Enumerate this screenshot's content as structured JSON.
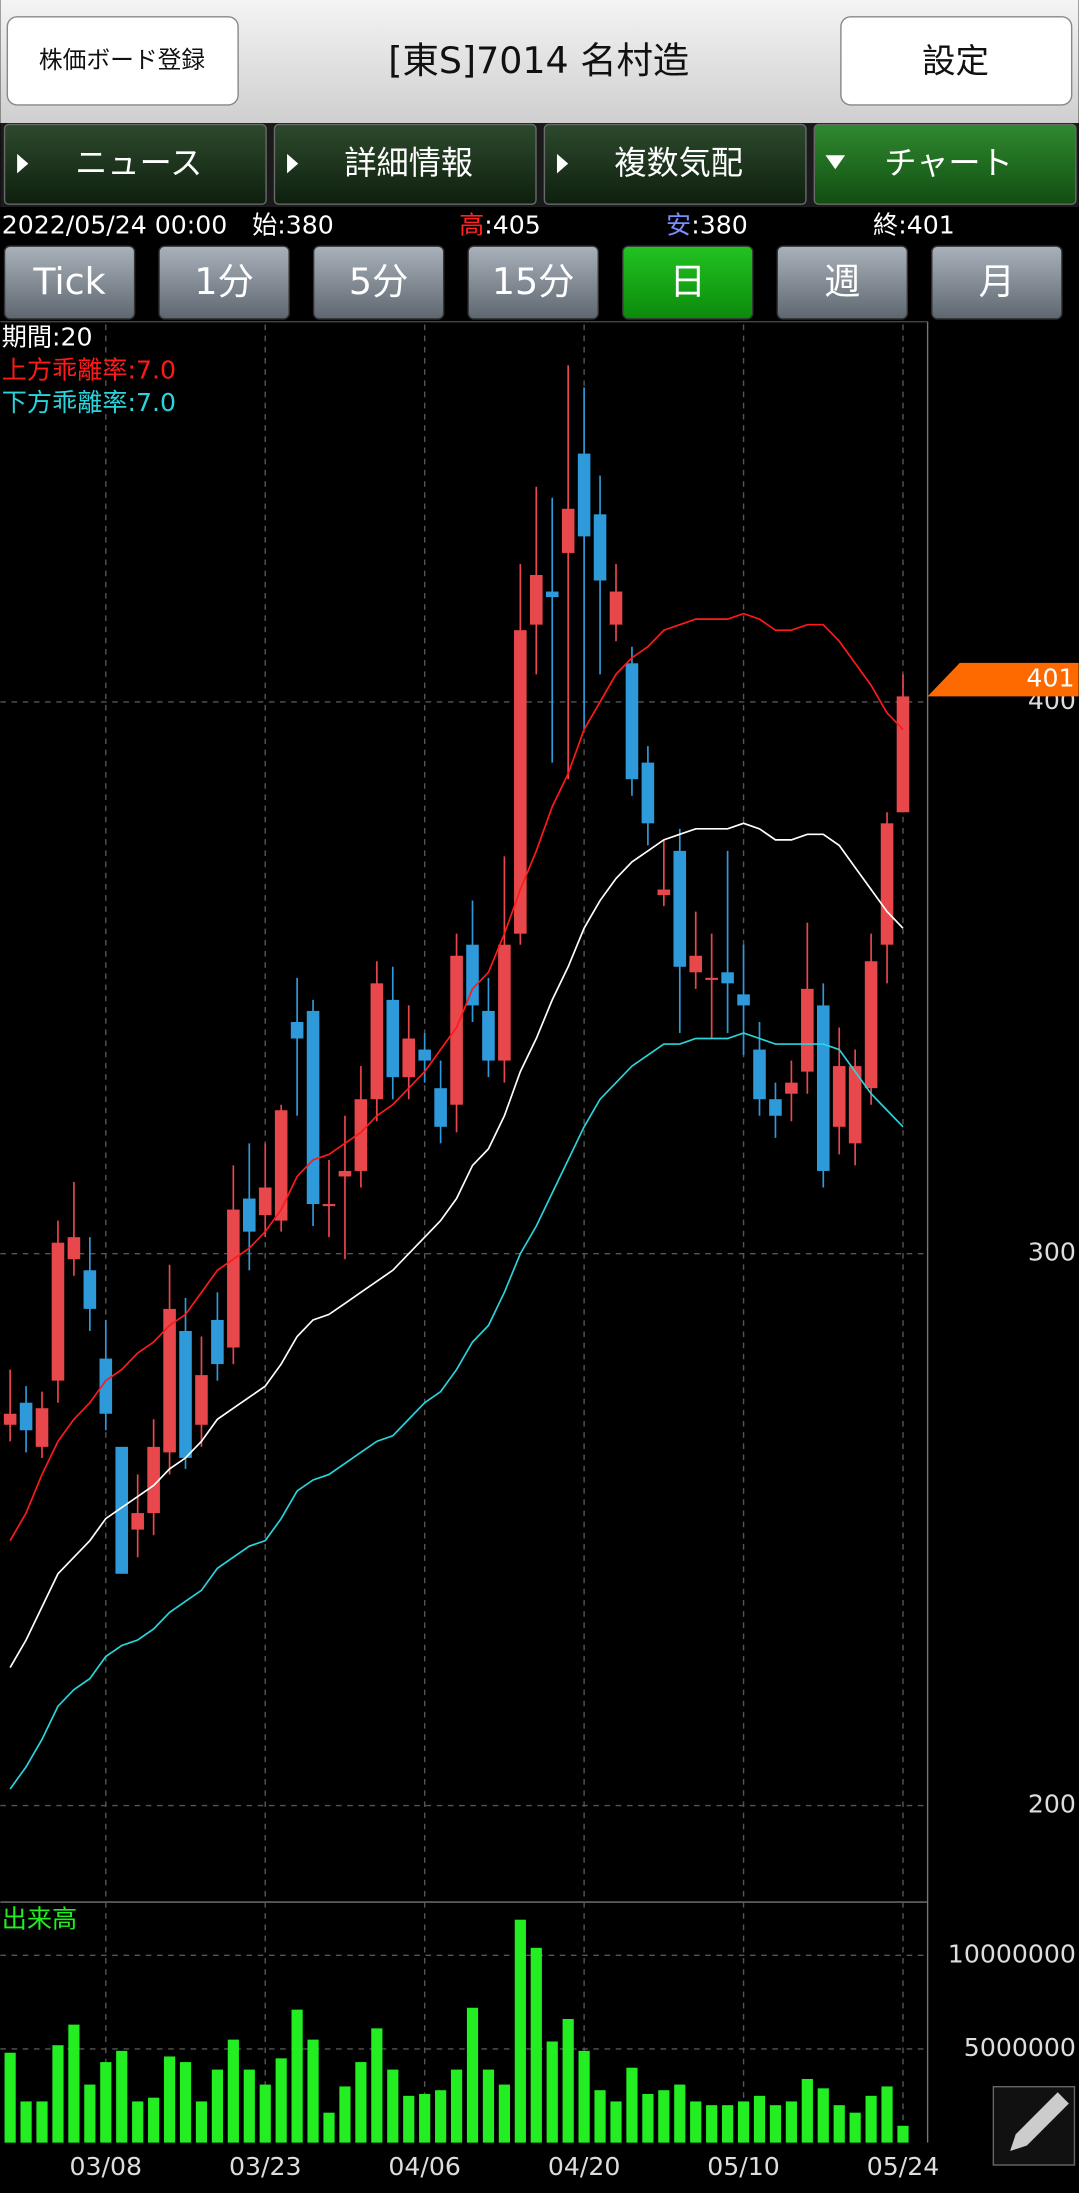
{
  "header": {
    "register_button": "株価ボード登録",
    "title": "[東S]7014 名村造",
    "settings_button": "設定",
    "tabs": [
      "ニュース",
      "詳細情報",
      "複数気配",
      "チャート"
    ],
    "active_tab": "チャート",
    "info": {
      "date": "2022/05/24 00:00",
      "open": {
        "label": "始",
        "value": ":380"
      },
      "high": {
        "label": "高",
        "value": ":405"
      },
      "low": {
        "label": "安",
        "value": ":380"
      },
      "close": {
        "label": "終",
        "value": ":401"
      }
    },
    "periods": [
      "Tick",
      "1分",
      "5分",
      "15分",
      "日",
      "週",
      "月"
    ],
    "active_period": "日"
  },
  "chart_data": [
    {
      "type": "candlestick",
      "up_color": "#e8474b",
      "down_color": "#2e9ad9",
      "categories": [
        null,
        null,
        null,
        null,
        null,
        null,
        "03/08",
        null,
        null,
        null,
        null,
        null,
        null,
        null,
        null,
        null,
        "03/23",
        null,
        null,
        null,
        null,
        null,
        null,
        null,
        null,
        null,
        "04/06",
        null,
        null,
        null,
        null,
        null,
        null,
        null,
        null,
        null,
        "04/20",
        null,
        null,
        null,
        null,
        null,
        null,
        null,
        null,
        null,
        "05/10",
        null,
        null,
        null,
        null,
        null,
        null,
        null,
        null,
        null,
        "05/24"
      ],
      "open": [
        269,
        273,
        265,
        277,
        299,
        297,
        281,
        265,
        250,
        253,
        264,
        286,
        269,
        288,
        283,
        310,
        307,
        306,
        342,
        344,
        309,
        314,
        315,
        328,
        346,
        332,
        337,
        330,
        327,
        356,
        344,
        335,
        358,
        414,
        420,
        427,
        445,
        434,
        414,
        407,
        389,
        365,
        373,
        351,
        350,
        351,
        347,
        337,
        328,
        329,
        333,
        345,
        323,
        320,
        330,
        356,
        380
      ],
      "high": [
        279,
        276,
        275,
        306,
        313,
        303,
        288,
        265,
        260,
        270,
        298,
        292,
        285,
        293,
        316,
        320,
        320,
        327,
        350,
        346,
        317,
        325,
        334,
        353,
        352,
        345,
        340,
        335,
        358,
        364,
        350,
        372,
        425,
        439,
        437,
        461,
        457,
        441,
        425,
        410,
        392,
        375,
        377,
        362,
        358,
        373,
        356,
        342,
        331,
        335,
        360,
        349,
        341,
        337,
        358,
        380,
        405
      ],
      "low": [
        266,
        264,
        263,
        273,
        296,
        286,
        268,
        242,
        245,
        249,
        260,
        261,
        265,
        277,
        280,
        297,
        303,
        304,
        325,
        305,
        303,
        299,
        312,
        324,
        328,
        328,
        331,
        320,
        322,
        342,
        332,
        331,
        356,
        405,
        389,
        386,
        395,
        405,
        411,
        383,
        374,
        363,
        340,
        348,
        339,
        340,
        336,
        325,
        321,
        324,
        329,
        312,
        318,
        316,
        327,
        349,
        380
      ],
      "close": [
        271,
        268,
        272,
        302,
        303,
        290,
        271,
        242,
        253,
        265,
        290,
        263,
        278,
        280,
        308,
        304,
        312,
        326,
        339,
        309,
        309,
        315,
        328,
        349,
        332,
        339,
        335,
        323,
        354,
        345,
        335,
        356,
        413,
        423,
        419,
        435,
        430,
        422,
        420,
        386,
        378,
        366,
        352,
        354,
        350,
        349,
        345,
        328,
        325,
        331,
        348,
        315,
        334,
        334,
        353,
        378,
        401
      ],
      "series": [
        {
          "name": "期間:20",
          "color": "#ffffff",
          "values": [
            225,
            230,
            236,
            242,
            245,
            248,
            252,
            254,
            256,
            258,
            261,
            263,
            266,
            270,
            272,
            274,
            276,
            280,
            285,
            288,
            289,
            291,
            293,
            295,
            297,
            300,
            303,
            306,
            310,
            316,
            319,
            325,
            333,
            339,
            346,
            352,
            359,
            364,
            368,
            371,
            373,
            375,
            376,
            377,
            377,
            377,
            378,
            377,
            375,
            375,
            376,
            376,
            374,
            370,
            366,
            362,
            359
          ]
        },
        {
          "name": "上方乖離率:7.0",
          "color": "#ff1a1a",
          "values": [
            248,
            253,
            260,
            266,
            270,
            273,
            277,
            279,
            282,
            284,
            287,
            289,
            293,
            297,
            299,
            301,
            304,
            308,
            314,
            317,
            318,
            320,
            322,
            325,
            327,
            330,
            333,
            337,
            341,
            348,
            351,
            358,
            366,
            373,
            381,
            387,
            395,
            400,
            405,
            408,
            410,
            413,
            414,
            415,
            415,
            415,
            416,
            415,
            413,
            413,
            414,
            414,
            411,
            407,
            403,
            398,
            395
          ]
        },
        {
          "name": "下方乖離率:7.0",
          "color": "#2ad4dc",
          "values": [
            203,
            207,
            212,
            218,
            221,
            223,
            227,
            229,
            230,
            232,
            235,
            237,
            239,
            243,
            245,
            247,
            248,
            252,
            257,
            259,
            260,
            262,
            264,
            266,
            267,
            270,
            273,
            275,
            279,
            284,
            287,
            293,
            300,
            305,
            311,
            317,
            323,
            328,
            331,
            334,
            336,
            338,
            338,
            339,
            339,
            339,
            340,
            339,
            338,
            338,
            338,
            338,
            337,
            333,
            329,
            326,
            323
          ]
        }
      ],
      "price_tag_color": "#ff6a00",
      "ylim": [
        182.5,
        468.4
      ],
      "yticks": [
        200,
        300,
        400
      ],
      "grid": true
    },
    {
      "type": "bar",
      "title": "出来高",
      "color": "#22ee22",
      "values": [
        4800000,
        2200000,
        2200000,
        5200000,
        6300000,
        3100000,
        4300000,
        4900000,
        2200000,
        2400000,
        4600000,
        4300000,
        2200000,
        3900000,
        5500000,
        3900000,
        3100000,
        4500000,
        7100000,
        5500000,
        1600000,
        3000000,
        4300000,
        6100000,
        3900000,
        2500000,
        2600000,
        2800000,
        3900000,
        7200000,
        3900000,
        3100000,
        11900000,
        10400000,
        5400000,
        6600000,
        4900000,
        2800000,
        2200000,
        4000000,
        2600000,
        2800000,
        3100000,
        2200000,
        2000000,
        2000000,
        2200000,
        2500000,
        2000000,
        2200000,
        3400000,
        2900000,
        2000000,
        1600000,
        2500000,
        3000000,
        900000
      ],
      "ylim": [
        0,
        12840000
      ],
      "yticks": [
        5000000,
        10000000
      ],
      "grid": true
    }
  ]
}
